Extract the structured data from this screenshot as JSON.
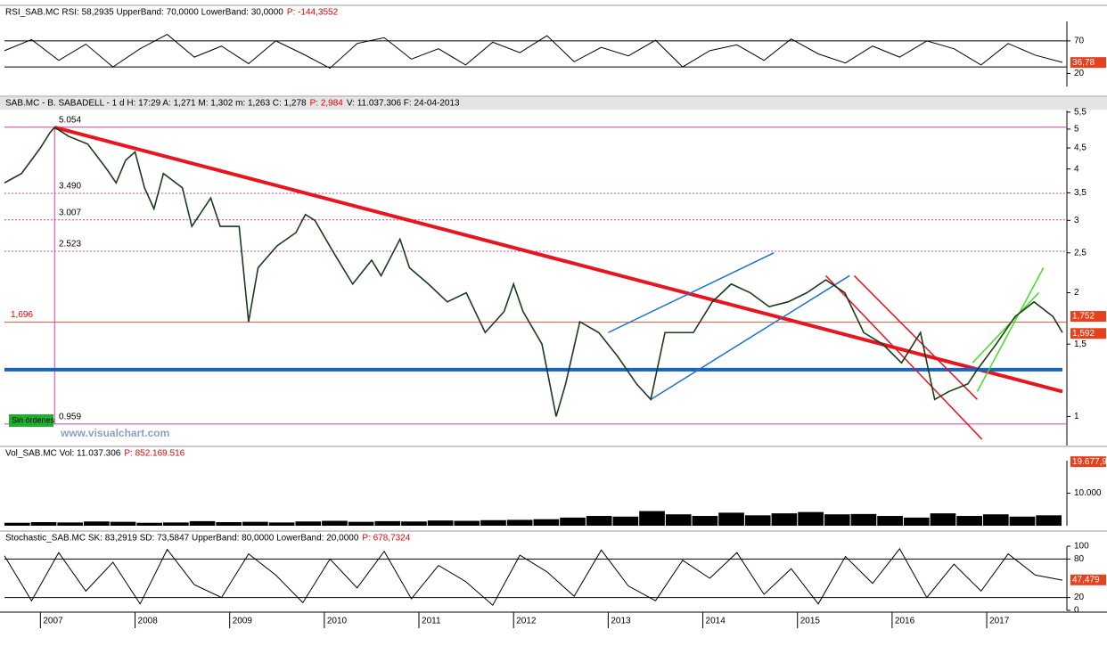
{
  "rsi": {
    "header": "RSI_SAB.MC  RSI: 58,2935  UpperBand: 70,0000  LowerBand: 30,0000",
    "p": "P: -144,3552",
    "ylim": [
      0,
      100
    ],
    "yticks": [
      {
        "value": 70,
        "label": "70"
      },
      {
        "value": 20,
        "label": "20"
      }
    ],
    "bands": [
      70,
      30
    ],
    "last": {
      "value": 36.78,
      "label": "36,78"
    },
    "values": [
      55,
      72,
      40,
      65,
      30,
      58,
      80,
      45,
      62,
      35,
      70,
      50,
      28,
      66,
      75,
      42,
      58,
      33,
      68,
      52,
      78,
      38,
      60,
      47,
      71,
      30,
      55,
      64,
      40,
      73,
      50,
      36,
      62,
      45,
      70,
      58,
      33,
      66,
      48,
      37
    ]
  },
  "price": {
    "header": "SAB.MC - B. SABADELL -  1 d  H: 17:29  A: 1,271  M: 1,302  m: 1,263  C: 1,278",
    "p": "P: 2,984",
    "tail": "V: 11.037.306  F: 24-04-2013",
    "log": true,
    "ylim": [
      0.85,
      5.55
    ],
    "xlim": [
      2006.62,
      2017.8
    ],
    "yticks": [
      {
        "value": 5.5,
        "label": "5,5"
      },
      {
        "value": 5,
        "label": "5"
      },
      {
        "value": 4.5,
        "label": "4,5"
      },
      {
        "value": 4,
        "label": "4"
      },
      {
        "value": 3.5,
        "label": "3,5"
      },
      {
        "value": 3,
        "label": "3"
      },
      {
        "value": 2.5,
        "label": "2,5"
      },
      {
        "value": 2,
        "label": "2"
      },
      {
        "value": 1.5,
        "label": "1,5"
      },
      {
        "value": 1,
        "label": "1"
      }
    ],
    "levels": [
      {
        "value": 5.054,
        "label": "5.054"
      },
      {
        "value": 3.49,
        "label": "3.490"
      },
      {
        "value": 3.007,
        "label": "3.007"
      },
      {
        "value": 2.523,
        "label": "2.523"
      },
      {
        "value": 1.696,
        "label": "1,696"
      },
      {
        "value": 0.959,
        "label": "0.959"
      }
    ],
    "x": [
      2006.62,
      2006.8,
      2007.0,
      2007.1,
      2007.15,
      2007.3,
      2007.5,
      2007.7,
      2007.8,
      2007.9,
      2008.0,
      2008.1,
      2008.2,
      2008.3,
      2008.5,
      2008.6,
      2008.8,
      2008.9,
      2009.1,
      2009.2,
      2009.3,
      2009.5,
      2009.7,
      2009.8,
      2009.9,
      2010.1,
      2010.3,
      2010.5,
      2010.6,
      2010.8,
      2010.9,
      2011.1,
      2011.3,
      2011.5,
      2011.7,
      2011.9,
      2012.0,
      2012.1,
      2012.3,
      2012.45,
      2012.55,
      2012.7,
      2012.9,
      2013.1,
      2013.3,
      2013.45,
      2013.6,
      2013.9,
      2014.1,
      2014.3,
      2014.5,
      2014.7,
      2014.9,
      2015.1,
      2015.3,
      2015.5,
      2015.7,
      2015.9,
      2016.1,
      2016.3,
      2016.45,
      2016.6,
      2016.8,
      2016.9,
      2017.1,
      2017.3,
      2017.5,
      2017.7,
      2017.8
    ],
    "values": [
      3.7,
      3.9,
      4.5,
      4.9,
      5.05,
      4.8,
      4.6,
      4.0,
      3.7,
      4.2,
      4.4,
      3.6,
      3.2,
      3.9,
      3.6,
      2.9,
      3.4,
      2.9,
      2.9,
      1.7,
      2.3,
      2.6,
      2.8,
      3.1,
      3.0,
      2.5,
      2.1,
      2.4,
      2.2,
      2.7,
      2.3,
      2.1,
      1.9,
      2.0,
      1.6,
      1.8,
      2.1,
      1.8,
      1.5,
      1.0,
      1.2,
      1.7,
      1.6,
      1.4,
      1.2,
      1.1,
      1.6,
      1.6,
      1.9,
      2.1,
      2.0,
      1.85,
      1.9,
      2.0,
      2.15,
      2.0,
      1.6,
      1.5,
      1.35,
      1.6,
      1.1,
      1.15,
      1.2,
      1.3,
      1.5,
      1.75,
      1.9,
      1.75,
      1.6
    ],
    "trendlines": [
      {
        "color": "#e8141e",
        "width": 4,
        "points": [
          [
            2007.15,
            5.05
          ],
          [
            2017.8,
            1.15
          ]
        ]
      },
      {
        "color": "#1464c8",
        "width": 4,
        "points": [
          [
            2006.62,
            1.3
          ],
          [
            2017.8,
            1.3
          ]
        ]
      },
      {
        "color": "#1e6fd0",
        "width": 1.5,
        "points": [
          [
            2013.45,
            1.1
          ],
          [
            2015.55,
            2.2
          ]
        ]
      },
      {
        "color": "#1e6fd0",
        "width": 1.5,
        "points": [
          [
            2013.0,
            1.6
          ],
          [
            2014.75,
            2.5
          ]
        ]
      },
      {
        "color": "#e8141e",
        "width": 1.5,
        "points": [
          [
            2015.3,
            2.2
          ],
          [
            2016.95,
            0.88
          ]
        ]
      },
      {
        "color": "#e8141e",
        "width": 1.5,
        "points": [
          [
            2015.6,
            2.2
          ],
          [
            2016.9,
            1.1
          ]
        ]
      },
      {
        "color": "#40e020",
        "width": 1.5,
        "points": [
          [
            2016.9,
            1.15
          ],
          [
            2017.6,
            2.3
          ]
        ]
      },
      {
        "color": "#40e020",
        "width": 1.5,
        "points": [
          [
            2016.85,
            1.35
          ],
          [
            2017.55,
            2.0
          ]
        ]
      }
    ],
    "last": [
      {
        "value": 1.752,
        "label": "1,752"
      },
      {
        "value": 1.592,
        "label": "1,592"
      }
    ],
    "orders": "Sin órdenes",
    "watermark": "www.visualchart.com"
  },
  "volume": {
    "header": "Vol_SAB.MC  Vol: 11.037.306",
    "p": "P: 852.169.516",
    "ylim": [
      0,
      20000
    ],
    "yticks": [
      {
        "value": 10000,
        "label": "10.000"
      }
    ],
    "last": {
      "value": 19677.9,
      "label": "19.677,9"
    },
    "values": [
      900,
      1100,
      1000,
      1300,
      1200,
      900,
      1000,
      1400,
      1100,
      1200,
      1000,
      1300,
      1500,
      1200,
      1400,
      1300,
      1600,
      1500,
      1700,
      1800,
      2000,
      2500,
      3000,
      2800,
      4500,
      3500,
      3000,
      4000,
      3200,
      3800,
      4200,
      3500,
      3600,
      3000,
      2500,
      3800,
      3000,
      3500,
      2800,
      3200
    ]
  },
  "stochastic": {
    "header": "Stochastic_SAB.MC  SK: 83,2919  SD: 73,5847  UpperBand: 80,0000  LowerBand: 20,0000",
    "p": "P: 678,7324",
    "ylim": [
      0,
      100
    ],
    "yticks": [
      {
        "value": 100,
        "label": "100"
      },
      {
        "value": 80,
        "label": "80"
      },
      {
        "value": 20,
        "label": "20"
      },
      {
        "value": 0,
        "label": "0"
      }
    ],
    "bands": [
      80,
      20
    ],
    "last": {
      "value": 47.479,
      "label": "47,479"
    },
    "values": [
      85,
      15,
      90,
      30,
      75,
      10,
      95,
      40,
      20,
      88,
      55,
      12,
      80,
      35,
      92,
      18,
      70,
      45,
      8,
      86,
      60,
      22,
      94,
      38,
      15,
      78,
      50,
      90,
      25,
      65,
      10,
      84,
      42,
      96,
      20,
      72,
      30,
      88,
      55,
      47
    ]
  },
  "xaxis": {
    "ticks": [
      {
        "value": 2007,
        "label": "2007"
      },
      {
        "value": 2008,
        "label": "2008"
      },
      {
        "value": 2009,
        "label": "2009"
      },
      {
        "value": 2010,
        "label": "2010"
      },
      {
        "value": 2011,
        "label": "2011"
      },
      {
        "value": 2012,
        "label": "2012"
      },
      {
        "value": 2013,
        "label": "2013"
      },
      {
        "value": 2014,
        "label": "2014"
      },
      {
        "value": 2015,
        "label": "2015"
      },
      {
        "value": 2016,
        "label": "2016"
      },
      {
        "value": 2017,
        "label": "2017"
      }
    ]
  }
}
